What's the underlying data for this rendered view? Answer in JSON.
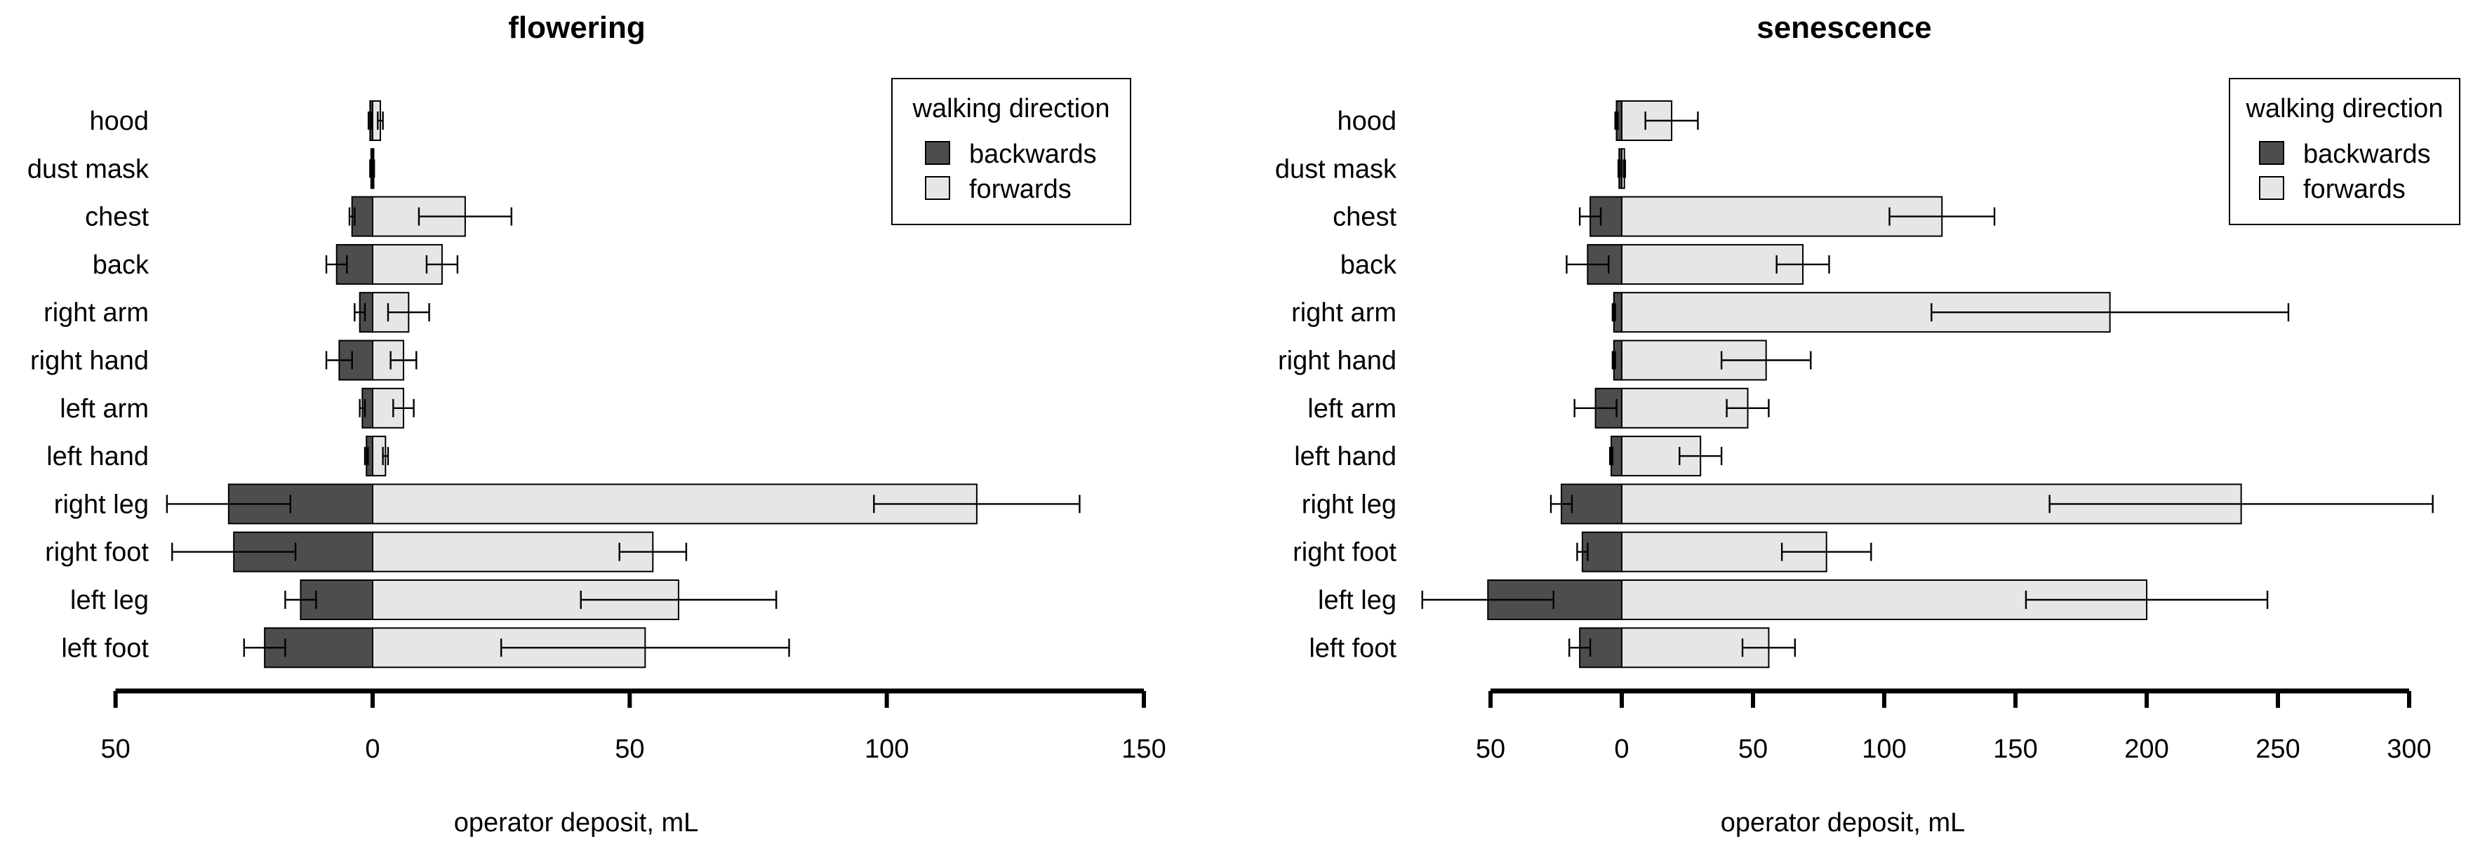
{
  "chart_data": [
    {
      "type": "bar",
      "orientation": "horizontal",
      "title": "flowering",
      "xlabel": "operator deposit,  mL",
      "categories": [
        "hood",
        "dust mask",
        "chest",
        "back",
        "right arm",
        "right hand",
        "left arm",
        "left hand",
        "right leg",
        "right foot",
        "left leg",
        "left foot"
      ],
      "xlim": [
        -50,
        150
      ],
      "xticks": [
        -50,
        0,
        50,
        100,
        150
      ],
      "xtick_labels": [
        "50",
        "0",
        "50",
        "100",
        "150"
      ],
      "legend": {
        "title": "walking direction",
        "position": "top-right",
        "entries": [
          {
            "label": "backwards",
            "color": "#4d4d4d"
          },
          {
            "label": "forwards",
            "color": "#e6e6e6"
          }
        ]
      },
      "series": [
        {
          "name": "backwards",
          "color": "#4d4d4d",
          "values": [
            0.5,
            0.3,
            4,
            7,
            2.5,
            6.5,
            2,
            1.2,
            28,
            27,
            14,
            21
          ],
          "error": [
            0.3,
            0.2,
            0.5,
            2,
            1,
            2.5,
            0.5,
            0.3,
            12,
            12,
            3,
            4
          ]
        },
        {
          "name": "forwards",
          "color": "#e6e6e6",
          "values": [
            1.5,
            0.2,
            18,
            13.5,
            7,
            6,
            6,
            2.5,
            117.5,
            54.5,
            59.5,
            53
          ],
          "error": [
            0.5,
            0.1,
            9,
            3,
            4,
            2.5,
            2,
            0.5,
            20,
            6.5,
            19,
            28
          ]
        }
      ]
    },
    {
      "type": "bar",
      "orientation": "horizontal",
      "title": "senescence",
      "xlabel": "operator deposit,  mL",
      "categories": [
        "hood",
        "dust mask",
        "chest",
        "back",
        "right arm",
        "right hand",
        "left arm",
        "left hand",
        "right leg",
        "right foot",
        "left leg",
        "left foot"
      ],
      "xlim": [
        -50,
        300
      ],
      "xticks": [
        -50,
        0,
        50,
        100,
        150,
        200,
        250,
        300
      ],
      "xtick_labels": [
        "50",
        "0",
        "50",
        "100",
        "150",
        "200",
        "250",
        "300"
      ],
      "legend": {
        "title": "walking direction",
        "position": "top-right",
        "entries": [
          {
            "label": "backwards",
            "color": "#4d4d4d"
          },
          {
            "label": "forwards",
            "color": "#e6e6e6"
          }
        ]
      },
      "series": [
        {
          "name": "backwards",
          "color": "#4d4d4d",
          "values": [
            2,
            1,
            12,
            13,
            3,
            3,
            10,
            4,
            23,
            15,
            51,
            16
          ],
          "error": [
            0.5,
            0.3,
            4,
            8,
            0.5,
            0.5,
            8,
            0.5,
            4,
            2,
            25,
            4
          ]
        },
        {
          "name": "forwards",
          "color": "#e6e6e6",
          "values": [
            19,
            1,
            122,
            69,
            186,
            55,
            48,
            30,
            236,
            78,
            200,
            56
          ],
          "error": [
            10,
            0.3,
            20,
            10,
            68,
            17,
            8,
            8,
            73,
            17,
            46,
            10
          ]
        }
      ]
    }
  ]
}
